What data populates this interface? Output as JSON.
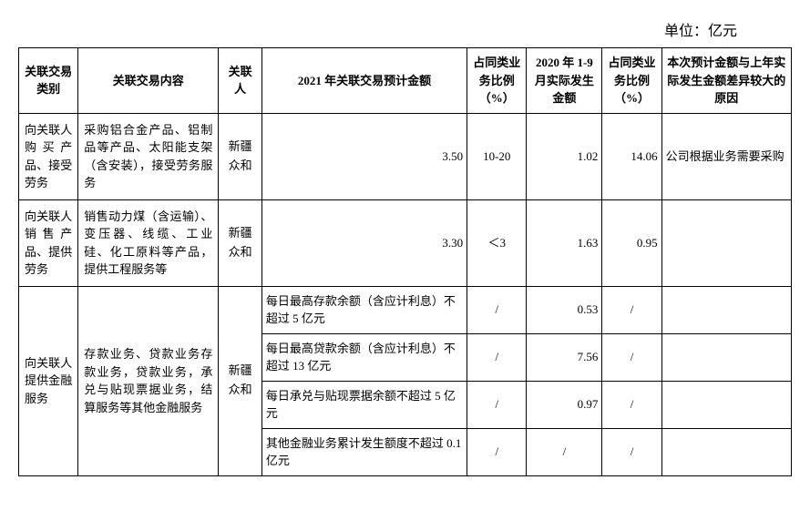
{
  "unit_label": "单位：亿元",
  "headers": {
    "category": "关联交易类别",
    "content": "关联交易内容",
    "party": "关联人",
    "estimate": "2021 年关联交易预计金额",
    "pct1": "占同类业务比例（%）",
    "actual": "2020 年 1-9 月实际发生金额",
    "pct2": "占同类业务比例（%）",
    "reason": "本次预计金额与上年实际发生金额差异较大的原因"
  },
  "rows": {
    "r1": {
      "category": "向关联人购买产品、接受劳务",
      "content": "采购铝合金产品、铝制品等产品、太阳能支架（含安装），接受劳务服务",
      "party": "新疆众和",
      "estimate": "3.50",
      "pct1": "10-20",
      "actual": "1.02",
      "pct2": "14.06",
      "reason": "公司根据业务需要采购"
    },
    "r2": {
      "category": "向关联人销售产品、提供劳务",
      "content": "销售动力煤（含运输）、变压器、线缆、工业硅、化工原料等产品，提供工程服务等",
      "party": "新疆众和",
      "estimate": "3.30",
      "pct1": "＜3",
      "actual": "1.63",
      "pct2": "0.95",
      "reason": ""
    },
    "r3": {
      "category": "向关联人提供金融服务",
      "content": "存款业务、贷款业务存款业务，贷款业务，承兑与贴现票据业务，结算服务等其他金融服务",
      "party": "新疆众和",
      "sub1": {
        "estimate": "每日最高存款余额（含应计利息）不超过 5 亿元",
        "pct1": "/",
        "actual": "0.53",
        "pct2": "/",
        "reason": ""
      },
      "sub2": {
        "estimate": "每日最高贷款余额（含应计利息）不超过 13 亿元",
        "pct1": "/",
        "actual": "7.56",
        "pct2": "/",
        "reason": ""
      },
      "sub3": {
        "estimate": "每日承兑与贴现票据余额不超过 5 亿元",
        "pct1": "/",
        "actual": "0.97",
        "pct2": "/",
        "reason": ""
      },
      "sub4": {
        "estimate": "其他金融业务累计发生额度不超过 0.1 亿元",
        "pct1": "/",
        "actual": "/",
        "pct2": "/",
        "reason": ""
      }
    }
  }
}
